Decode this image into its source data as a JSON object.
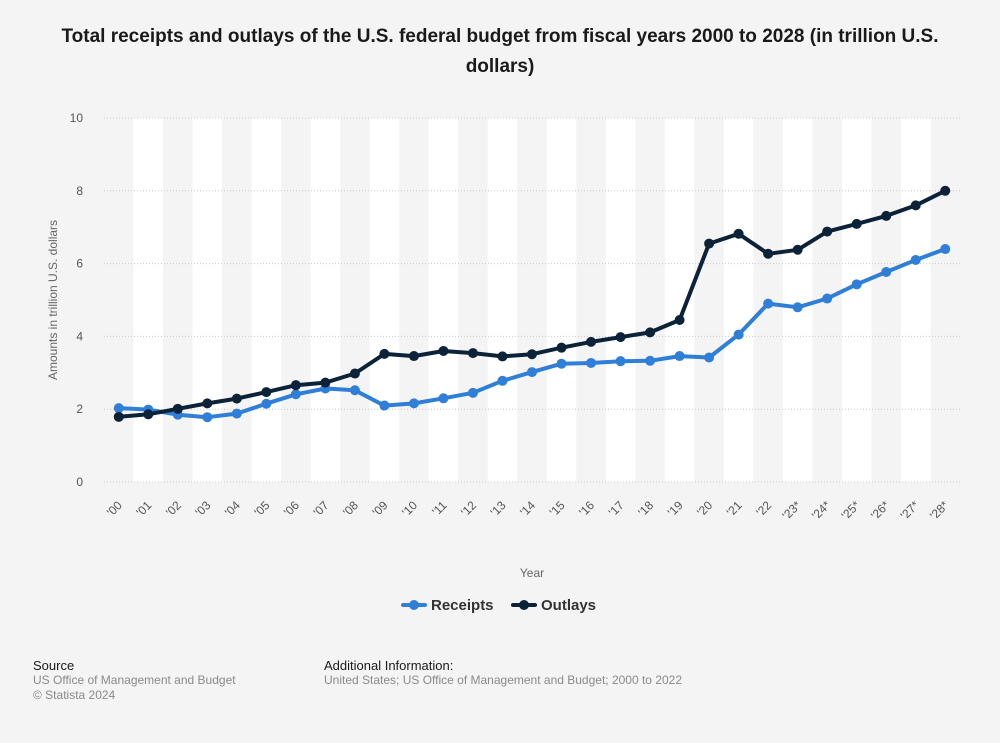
{
  "page_title": "Total receipts and outlays of the U.S. federal budget from fiscal years 2000 to 2028 (in trillion U.S. dollars)",
  "chart_data": {
    "type": "line",
    "title": "Total receipts and outlays of the U.S. federal budget from fiscal years 2000 to 2028 (in trillion U.S. dollars)",
    "xlabel": "Year",
    "ylabel": "Amounts in trillion U.S. dollars",
    "ylim": [
      0,
      10
    ],
    "yticks": [
      0,
      2,
      4,
      6,
      8,
      10
    ],
    "grid": true,
    "legend_position": "bottom-center",
    "categories": [
      "'00",
      "'01",
      "'02",
      "'03",
      "'04",
      "'05",
      "'06",
      "'07",
      "'08",
      "'09",
      "'10",
      "'11",
      "'12",
      "'13",
      "'14",
      "'15",
      "'16",
      "'17",
      "'18",
      "'19",
      "'20",
      "'21",
      "'22",
      "'23*",
      "'24*",
      "'25*",
      "'26*",
      "'27*",
      "'28*"
    ],
    "series": [
      {
        "name": "Receipts",
        "color": "#2f7ed8",
        "values": [
          2.03,
          1.99,
          1.85,
          1.78,
          1.88,
          2.15,
          2.41,
          2.57,
          2.52,
          2.1,
          2.16,
          2.3,
          2.45,
          2.78,
          3.02,
          3.25,
          3.27,
          3.32,
          3.33,
          3.46,
          3.42,
          4.05,
          4.9,
          4.8,
          5.04,
          5.43,
          5.77,
          6.1,
          6.4
        ]
      },
      {
        "name": "Outlays",
        "color": "#0b2239",
        "values": [
          1.79,
          1.86,
          2.01,
          2.16,
          2.29,
          2.47,
          2.66,
          2.73,
          2.98,
          3.52,
          3.46,
          3.6,
          3.54,
          3.45,
          3.51,
          3.69,
          3.85,
          3.98,
          4.11,
          4.45,
          6.55,
          6.82,
          6.27,
          6.38,
          6.88,
          7.09,
          7.31,
          7.6,
          8.0
        ]
      }
    ]
  },
  "footer": {
    "source_heading": "Source",
    "source_lines": [
      "US Office of Management and Budget",
      "© Statista 2024"
    ],
    "info_heading": "Additional Information:",
    "info_lines": [
      "United States; US Office of Management and Budget; 2000 to 2022"
    ]
  }
}
